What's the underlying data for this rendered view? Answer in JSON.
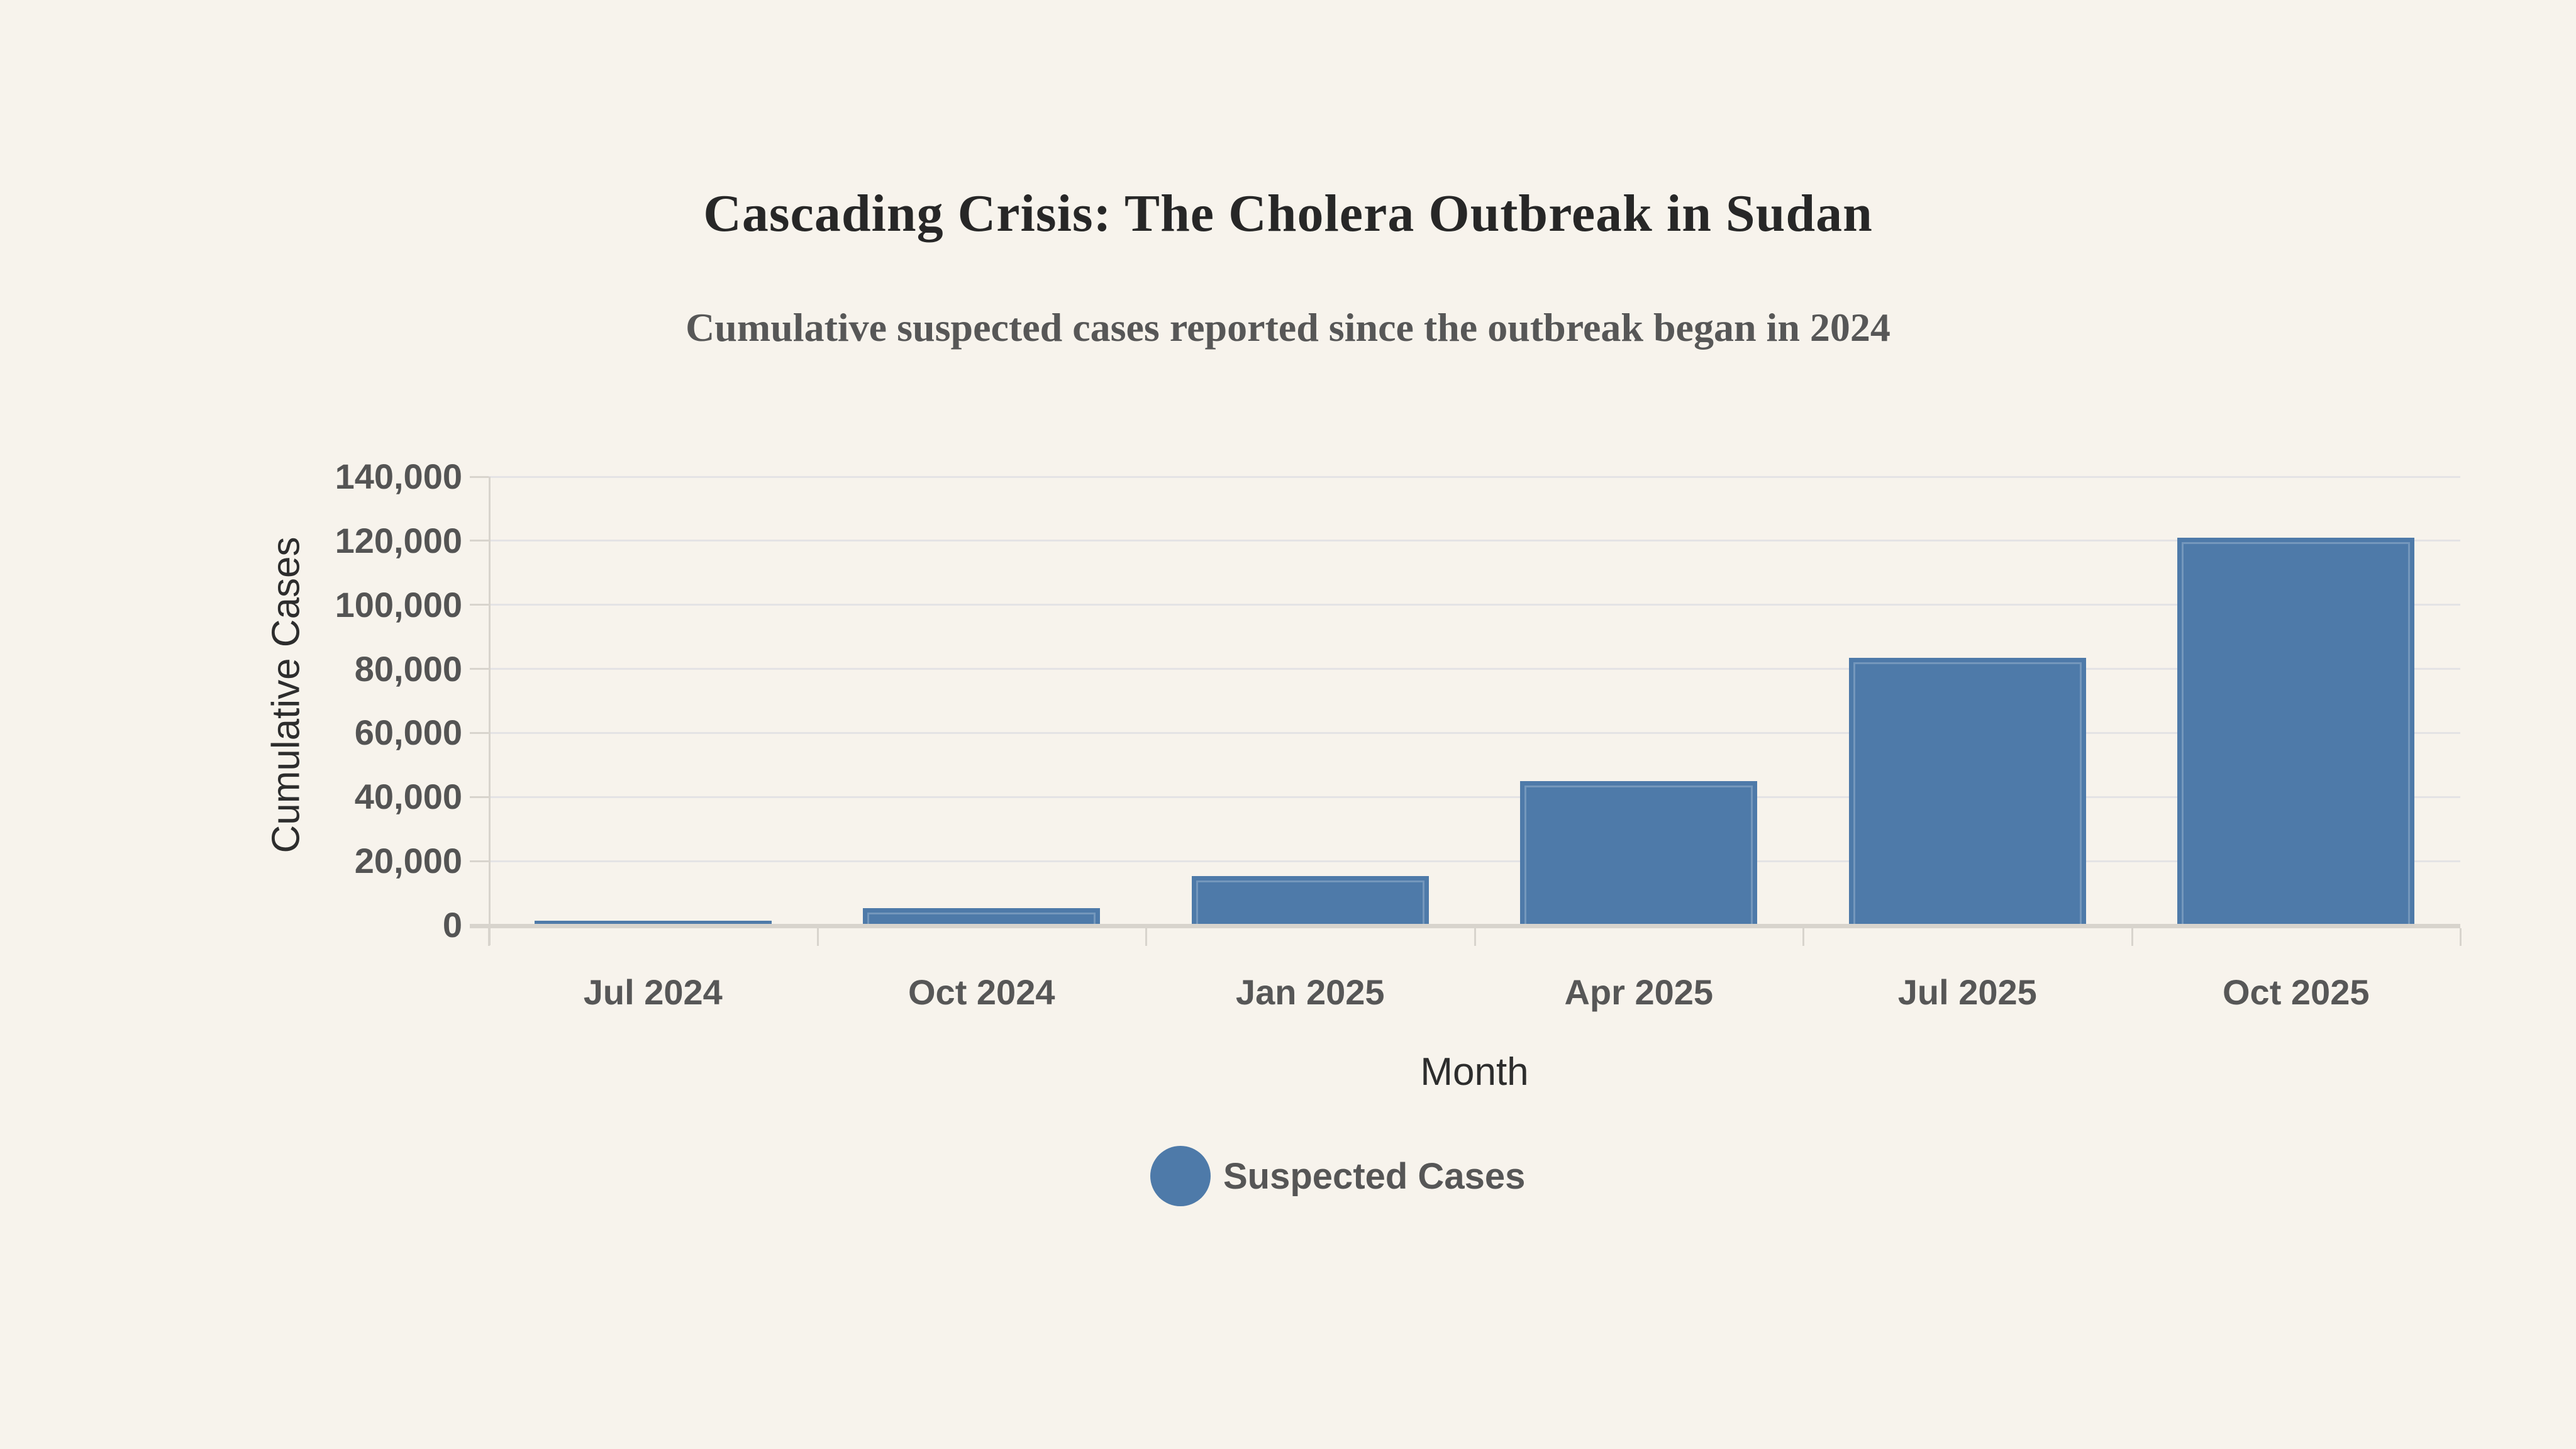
{
  "header": {
    "title": "Cascading Crisis: The Cholera Outbreak in Sudan",
    "subtitle": "Cumulative suspected cases reported since the outbreak began in 2024"
  },
  "chart_data": {
    "type": "bar",
    "title": "Cascading Crisis: The Cholera Outbreak in Sudan",
    "subtitle": "Cumulative suspected cases reported since the outbreak began in 2024",
    "categories": [
      "Jul 2024",
      "Oct 2024",
      "Jan 2025",
      "Apr 2025",
      "Jul 2025",
      "Oct 2025"
    ],
    "series": [
      {
        "name": "Suspected Cases",
        "values": [
          1000,
          5000,
          15000,
          44500,
          83000,
          120500
        ]
      }
    ],
    "xlabel": "Month",
    "ylabel": "Cumulative Cases",
    "ylim": [
      0,
      140000
    ],
    "ytick_interval": 20000,
    "ytick_labels": [
      "0",
      "20,000",
      "40,000",
      "60,000",
      "80,000",
      "100,000",
      "120,000",
      "140,000"
    ],
    "grid": true,
    "legend_position": "bottom"
  },
  "legend": {
    "items": [
      {
        "label": "Suspected Cases",
        "marker": "circle-icon",
        "color": "#4e7aa9"
      }
    ]
  },
  "colors": {
    "background": "#f7f3ec",
    "bar": "#4e7aa9",
    "gridline": "#e4e3e5",
    "axis": "#d8d4cd",
    "title": "#272727",
    "subtitle": "#575757",
    "tick_label": "#545454"
  }
}
